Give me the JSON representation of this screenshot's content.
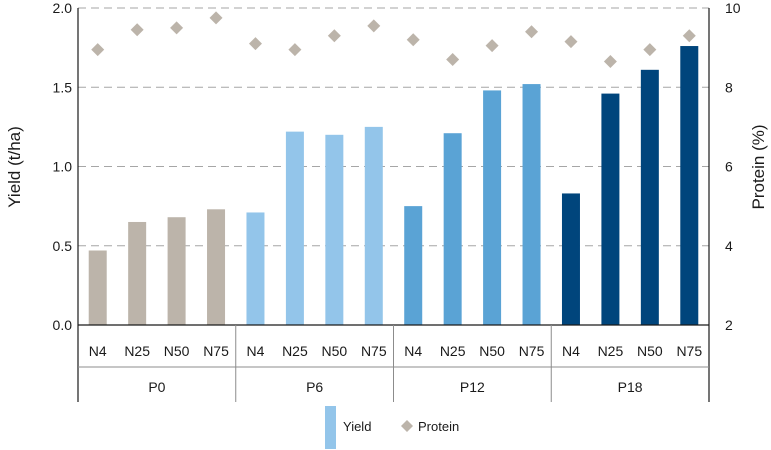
{
  "chart_data": {
    "type": "bar",
    "title": "",
    "ylabel": "Yield (t/ha)",
    "y2label": "Protein (%)",
    "ylim": [
      0,
      2.0
    ],
    "yticks": [
      "0.0",
      "0.5",
      "1.0",
      "1.5",
      "2.0"
    ],
    "y2lim": [
      2,
      10
    ],
    "y2ticks": [
      "2",
      "4",
      "6",
      "8",
      "10"
    ],
    "grid": "dashed horizontal",
    "legend_position": "bottom",
    "groups": [
      {
        "label": "P0",
        "color": "#bcb4aa"
      },
      {
        "label": "P6",
        "color": "#93c5ea"
      },
      {
        "label": "P12",
        "color": "#5aa3d5"
      },
      {
        "label": "P18",
        "color": "#00457c"
      }
    ],
    "categories": [
      "N4",
      "N25",
      "N50",
      "N75",
      "N4",
      "N25",
      "N50",
      "N75",
      "N4",
      "N25",
      "N50",
      "N75",
      "N4",
      "N25",
      "N50",
      "N75"
    ],
    "series": [
      {
        "name": "Yield",
        "kind": "bar",
        "axis": "left",
        "values": [
          0.47,
          0.65,
          0.68,
          0.73,
          0.71,
          1.22,
          1.2,
          1.25,
          0.75,
          1.21,
          1.48,
          1.52,
          0.83,
          1.46,
          1.61,
          1.76
        ]
      },
      {
        "name": "Protein",
        "kind": "marker",
        "marker": "diamond",
        "color": "#bcb4aa",
        "axis": "right",
        "values": [
          8.95,
          9.45,
          9.5,
          9.75,
          9.1,
          8.95,
          9.3,
          9.55,
          9.2,
          8.7,
          9.05,
          9.4,
          9.15,
          8.65,
          8.95,
          9.3
        ]
      }
    ]
  },
  "legend": {
    "yield_label": "Yield",
    "yield_color": "#93c5ea",
    "protein_label": "Protein",
    "protein_color": "#bcb4aa"
  }
}
